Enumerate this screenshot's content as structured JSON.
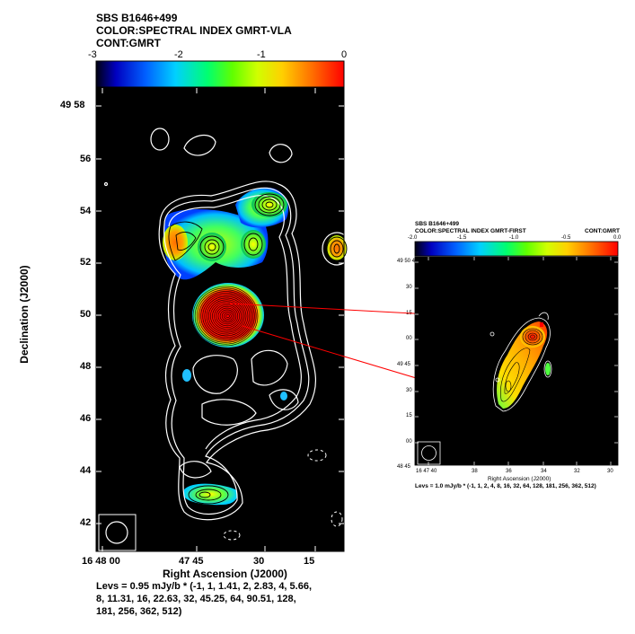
{
  "main_header": {
    "line1": "SBS B1646+499",
    "line2": "COLOR:SPECTRAL INDEX GMRT-VLA",
    "line3": "CONT:GMRT"
  },
  "main_colorbar": {
    "ticks": [
      "-3",
      "-2",
      "-1",
      "0"
    ],
    "range": [
      -3,
      0
    ]
  },
  "main_axes": {
    "xlabel": "Right Ascension (J2000)",
    "ylabel": "Declination (J2000)",
    "x_ticks": [
      "16 48 00",
      "47 45",
      "30",
      "15"
    ],
    "y_ticks": [
      "49 58",
      "56",
      "54",
      "52",
      "50",
      "48",
      "46",
      "44",
      "42"
    ]
  },
  "main_levels": {
    "line1": "Levs = 0.95 mJy/b * (-1, 1, 1.41, 2, 2.83, 4, 5.66,",
    "line2": "8, 11.31, 16, 22.63, 32, 45.25, 64, 90.51, 128,",
    "line3": "181, 256, 362, 512)"
  },
  "inset_header": {
    "line1": "SBS B1646+499",
    "line2": "COLOR:SPECTRAL INDEX GMRT-FIRST",
    "right": "CONT:GMRT"
  },
  "inset_colorbar": {
    "ticks": [
      "-2.0",
      "-1.5",
      "-1.0",
      "-0.5",
      "0.0"
    ],
    "range": [
      -2.0,
      0.0
    ]
  },
  "inset_axes": {
    "xlabel": "Right Ascension (J2000)",
    "x_ticks": [
      "16 47 40",
      "38",
      "36",
      "34",
      "32",
      "30"
    ],
    "y_ticks": [
      "49 50 45",
      "30",
      "15",
      "00",
      "49 45",
      "30",
      "15",
      "00",
      "48 45"
    ]
  },
  "inset_levels": {
    "line1": "Levs = 1.0 mJy/b * (-1, 1, 2, 4, 8, 16, 32, 64, 128, 181, 256, 362, 512)"
  },
  "chart_data": [
    {
      "type": "heatmap",
      "title": "SBS B1646+499",
      "subtitle": "COLOR:SPECTRAL INDEX GMRT-VLA | CONT:GMRT",
      "xlabel": "Right Ascension (J2000)",
      "ylabel": "Declination (J2000)",
      "colorbar": {
        "min": -3,
        "max": 0,
        "ticks": [
          -3,
          -2,
          -1,
          0
        ]
      },
      "contour_base_mJy_per_beam": 0.95,
      "contour_levels": [
        -1,
        1,
        1.41,
        2,
        2.83,
        4,
        5.66,
        8,
        11.31,
        16,
        22.63,
        32,
        45.25,
        64,
        90.51,
        128,
        181,
        256,
        362,
        512
      ]
    },
    {
      "type": "heatmap",
      "title": "SBS B1646+499",
      "subtitle": "COLOR:SPECTRAL INDEX GMRT-FIRST | CONT:GMRT",
      "xlabel": "Right Ascension (J2000)",
      "colorbar": {
        "min": -2.0,
        "max": 0.0,
        "ticks": [
          -2.0,
          -1.5,
          -1.0,
          -0.5,
          0.0
        ]
      },
      "contour_base_mJy_per_beam": 1.0,
      "contour_levels": [
        -1,
        1,
        2,
        4,
        8,
        16,
        32,
        64,
        128,
        181,
        256,
        362,
        512
      ]
    }
  ]
}
